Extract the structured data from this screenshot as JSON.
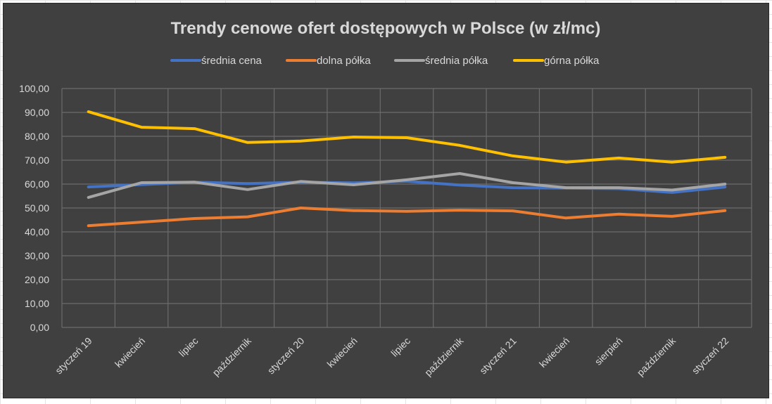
{
  "chart_data": {
    "type": "line",
    "title": "Trendy cenowe ofert dostępowych w Polsce (w zł/mc)",
    "categories": [
      "styczeń 19",
      "kwiecień",
      "lipiec",
      "październik",
      "styczeń 20",
      "kwiecień",
      "lipiec",
      "październik",
      "styczeń 21",
      "kwiecień",
      "sierpień",
      "październik",
      "styczeń 22"
    ],
    "ylim": [
      0,
      100
    ],
    "yticks": [
      "0,00",
      "10,00",
      "20,00",
      "30,00",
      "40,00",
      "50,00",
      "60,00",
      "70,00",
      "80,00",
      "90,00",
      "100,00"
    ],
    "grid": true,
    "legend_position": "top",
    "series": [
      {
        "name": "średnia cena",
        "color": "#4472c4",
        "values": [
          58.8,
          59.8,
          60.8,
          60.2,
          60.8,
          60.5,
          61.2,
          59.6,
          58.5,
          58.3,
          58.1,
          56.5,
          58.8
        ]
      },
      {
        "name": "dolna półka",
        "color": "#ed7d31",
        "values": [
          42.6,
          44.1,
          45.6,
          46.3,
          50.0,
          48.9,
          48.6,
          49.1,
          48.8,
          45.8,
          47.4,
          46.5,
          48.9
        ]
      },
      {
        "name": "średnia półka",
        "color": "#a5a5a5",
        "values": [
          54.4,
          60.6,
          60.8,
          57.7,
          61.1,
          59.7,
          61.8,
          64.4,
          60.6,
          58.5,
          58.5,
          57.5,
          60.0
        ]
      },
      {
        "name": "górna półka",
        "color": "#ffc000",
        "values": [
          90.3,
          83.8,
          83.2,
          77.4,
          78.0,
          79.7,
          79.4,
          76.2,
          71.8,
          69.2,
          70.9,
          69.2,
          71.2
        ]
      }
    ]
  }
}
